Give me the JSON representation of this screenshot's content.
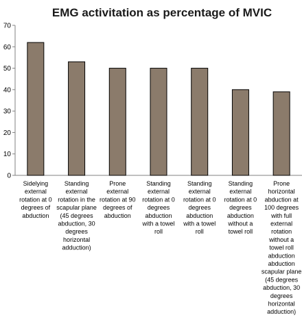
{
  "chart_data": {
    "type": "bar",
    "title": "EMG activitation as percentage of MVIC",
    "xlabel": "",
    "ylabel": "",
    "ylim": [
      0,
      70
    ],
    "yticks": [
      0,
      10,
      20,
      30,
      40,
      50,
      60,
      70
    ],
    "grid": false,
    "legend": "none",
    "bar_color": "#8b7b6b",
    "bar_edge_color": "#000000",
    "categories": [
      [
        "Sidelying",
        "external",
        "rotation at 0",
        "degrees of",
        "abduction"
      ],
      [
        "Standing",
        "external",
        "rotation in the",
        "scapular plane",
        "(45 degrees",
        "abduction, 30",
        "degrees",
        "horizontal",
        "adduction)"
      ],
      [
        "Prone",
        "external",
        "rotation at 90",
        "degrees of",
        "abduction"
      ],
      [
        "Standing",
        "external",
        "rotation at 0",
        "degrees",
        "abduction",
        "with a towel",
        "roll"
      ],
      [
        "Standing",
        "external",
        "rotation at 0",
        "degrees",
        "abduction",
        "with a towel",
        "roll"
      ],
      [
        "Standing",
        "external",
        "rotation at 0",
        "degrees",
        "abduction",
        "without a",
        "towel roll"
      ],
      [
        "Prone",
        "horizontal",
        "abduction at",
        "100 degrees",
        "with full",
        "external",
        "rotation",
        "without a",
        "towel roll",
        "abduction",
        "abduction",
        "scapular plane",
        "(45 degrees",
        "abduction, 30",
        "degrees",
        "horizontal",
        "adduction)"
      ]
    ],
    "values": [
      62,
      53,
      50,
      50,
      50,
      40,
      39
    ]
  }
}
